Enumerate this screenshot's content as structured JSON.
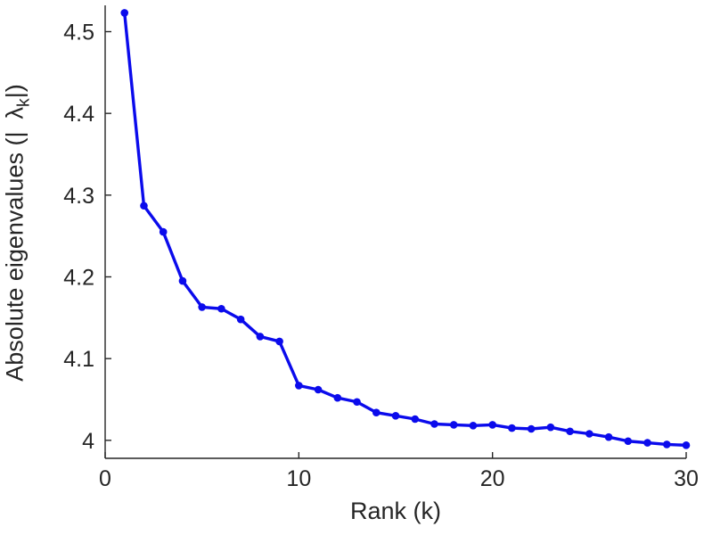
{
  "chart_data": {
    "type": "line",
    "title": "",
    "xlabel": "Rank (k)",
    "ylabel": "Absolute eigenvalues (| λk|)",
    "ylabel_parts": {
      "prefix": "Absolute eigenvalues (|",
      "lambda": "λ",
      "sub": "k",
      "suffix": "|)"
    },
    "x": [
      1,
      2,
      3,
      4,
      5,
      6,
      7,
      8,
      9,
      10,
      11,
      12,
      13,
      14,
      15,
      16,
      17,
      18,
      19,
      20,
      21,
      22,
      23,
      24,
      25,
      26,
      27,
      28,
      29,
      30
    ],
    "y": [
      4.523,
      4.287,
      4.255,
      4.195,
      4.163,
      4.161,
      4.148,
      4.127,
      4.121,
      4.067,
      4.062,
      4.052,
      4.047,
      4.034,
      4.03,
      4.026,
      4.02,
      4.019,
      4.018,
      4.019,
      4.015,
      4.014,
      4.016,
      4.011,
      4.008,
      4.004,
      3.999,
      3.997,
      3.995,
      3.994
    ],
    "xlim": [
      0,
      30
    ],
    "ylim": [
      3.978,
      4.53
    ],
    "xticks": [
      0,
      10,
      20,
      30
    ],
    "xtick_labels": [
      "0",
      "10",
      "20",
      "30"
    ],
    "yticks": [
      4.0,
      4.1,
      4.2,
      4.3,
      4.4,
      4.5
    ],
    "ytick_labels": [
      "4",
      "4.1",
      "4.2",
      "4.3",
      "4.4",
      "4.5"
    ],
    "grid": false,
    "legend": null,
    "line_color": "#0b0bec",
    "marker": "circle",
    "axis_color": "#262626",
    "background": "#ffffff"
  }
}
